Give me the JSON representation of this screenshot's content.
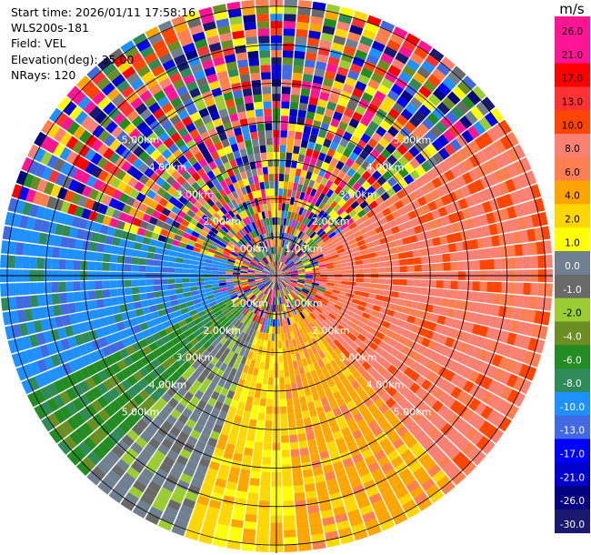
{
  "header": {
    "start_time": "Start time: 2026/01/11 17:58:16",
    "instrument": "WLS200s-181",
    "field": "Field: VEL",
    "elevation": "Elevation(deg): 35.00",
    "nrays": "NRays: 120"
  },
  "chart_data": {
    "type": "heatmap",
    "projection": "polar-ppi",
    "field": "VEL",
    "unit": "m/s",
    "nrays": 120,
    "range_rings_km": [
      1,
      2,
      3,
      4,
      5
    ],
    "range_ring_labels": [
      "1.00km",
      "2.00km",
      "3.00km",
      "4.00km",
      "5.00km"
    ],
    "max_range_km": 7.1,
    "colorbar": {
      "unit_label": "m/s",
      "tick_labels": [
        "26.0",
        "21.0",
        "17.0",
        "13.0",
        "10.0",
        "8.0",
        "6.0",
        "4.0",
        "2.0",
        "1.0",
        "0.0",
        "-1.0",
        "-2.0",
        "-4.0",
        "-6.0",
        "-8.0",
        "-10.0",
        "-13.0",
        "-17.0",
        "-21.0",
        "-26.0",
        "-30.0"
      ],
      "colors": [
        "#ff1493",
        "#ff1493",
        "#ff0000",
        "#ff3232",
        "#ff4500",
        "#fa8072",
        "#ff7f50",
        "#ffa500",
        "#ffd700",
        "#ffff00",
        "#708090",
        "#696969",
        "#9acd32",
        "#6b8e23",
        "#228b22",
        "#2e8b57",
        "#1e90ff",
        "#4169e1",
        "#0000ff",
        "#0000cd",
        "#000080",
        "#191970"
      ]
    }
  }
}
